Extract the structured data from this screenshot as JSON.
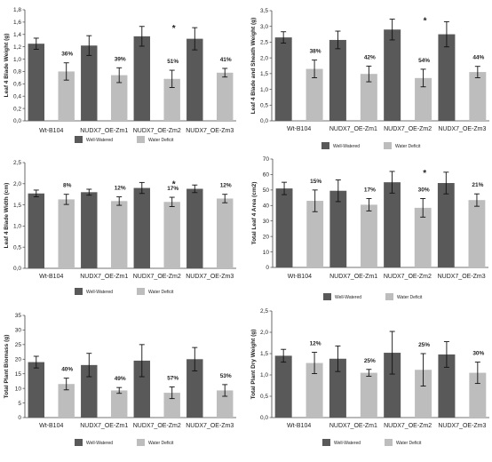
{
  "legend": {
    "well_watered_label": "Well-Watered",
    "water_deficit_label": "Water Deficit",
    "well_watered_color": "#595959",
    "water_deficit_color": "#bdbdbd"
  },
  "chart_data": [
    {
      "type": "bar",
      "ylabel": "Leaf 4 Blade Weight (g)",
      "ylim": [
        0,
        1.8
      ],
      "ytick_step": 0.2,
      "ytick_decimals": 1,
      "categories": [
        "Wt-B104",
        "NUDX7_OE-Zm1",
        "NUDX7_OE-Zm2",
        "NUDX7_OE-Zm3"
      ],
      "series": [
        {
          "name": "Well-Watered",
          "values": [
            1.25,
            1.22,
            1.37,
            1.33
          ],
          "errors": [
            0.09,
            0.16,
            0.16,
            0.18
          ]
        },
        {
          "name": "Water Deficit",
          "values": [
            0.8,
            0.74,
            0.68,
            0.78
          ],
          "errors": [
            0.14,
            0.12,
            0.14,
            0.07
          ]
        }
      ],
      "annotations": [
        "36%",
        "39%",
        "51%",
        "41%"
      ],
      "significance": [
        "",
        "",
        "*",
        ""
      ]
    },
    {
      "type": "bar",
      "ylabel": "Leaf 4 Blade and Sheath Weight (g)",
      "ylim": [
        0,
        3.5
      ],
      "ytick_step": 0.5,
      "ytick_decimals": 1,
      "categories": [
        "Wt-B104",
        "NUDX7_OE-Zm1",
        "NUDX7_OE-Zm2",
        "NUDX7_OE-Zm3"
      ],
      "series": [
        {
          "name": "Well-Watered",
          "values": [
            2.65,
            2.57,
            2.9,
            2.75
          ],
          "errors": [
            0.18,
            0.28,
            0.33,
            0.4
          ]
        },
        {
          "name": "Water Deficit",
          "values": [
            1.65,
            1.49,
            1.36,
            1.55
          ],
          "errors": [
            0.28,
            0.25,
            0.28,
            0.18
          ]
        }
      ],
      "annotations": [
        "38%",
        "42%",
        "54%",
        "44%"
      ],
      "significance": [
        "",
        "",
        "*",
        ""
      ]
    },
    {
      "type": "bar",
      "ylabel": "Leaf 4 Blade Width (cm)",
      "ylim": [
        0,
        2.5
      ],
      "ytick_step": 0.5,
      "ytick_decimals": 1,
      "categories": [
        "Wt-B104",
        "NUDX7_OE-Zm1",
        "NUDX7_OE-Zm2",
        "NUDX7_OE-Zm3"
      ],
      "series": [
        {
          "name": "Well-Watered",
          "values": [
            1.77,
            1.8,
            1.9,
            1.88
          ],
          "errors": [
            0.08,
            0.07,
            0.13,
            0.09
          ]
        },
        {
          "name": "Water Deficit",
          "values": [
            1.63,
            1.59,
            1.57,
            1.65
          ],
          "errors": [
            0.12,
            0.1,
            0.11,
            0.1
          ]
        }
      ],
      "annotations": [
        "8%",
        "12%",
        "17%",
        "12%"
      ],
      "significance": [
        "",
        "",
        "*",
        ""
      ]
    },
    {
      "type": "bar",
      "ylabel": "Total Leaf 4 Area (cm2)",
      "ylim": [
        0,
        70
      ],
      "ytick_step": 10,
      "ytick_decimals": 0,
      "categories": [
        "Wt-B104",
        "NUDX7_OE-Zm1",
        "NUDX7_OE-Zm2",
        "NUDX7_OE-Zm3"
      ],
      "series": [
        {
          "name": "Well-Watered",
          "values": [
            51,
            49.5,
            55,
            54.5
          ],
          "errors": [
            4,
            7,
            7,
            7
          ]
        },
        {
          "name": "Water Deficit",
          "values": [
            43,
            40.5,
            38.5,
            43.5
          ],
          "errors": [
            7,
            4,
            6,
            4
          ]
        }
      ],
      "annotations": [
        "15%",
        "17%",
        "30%",
        "21%"
      ],
      "significance": [
        "",
        "",
        "*",
        ""
      ]
    },
    {
      "type": "bar",
      "ylabel": "Total Plant Biomass (g)",
      "ylim": [
        0,
        35
      ],
      "ytick_step": 5,
      "ytick_decimals": 0,
      "categories": [
        "Wt-B104",
        "NUDX7_OE-Zm1",
        "NUDX7_OE-Zm2",
        "NUDX7_OE-Zm3"
      ],
      "series": [
        {
          "name": "Well-Watered",
          "values": [
            19,
            18,
            19.5,
            20
          ],
          "errors": [
            2,
            4,
            5.5,
            4
          ]
        },
        {
          "name": "Water Deficit",
          "values": [
            11.5,
            9.3,
            8.5,
            9.3
          ],
          "errors": [
            2,
            1,
            2,
            2
          ]
        }
      ],
      "annotations": [
        "40%",
        "49%",
        "57%",
        "53%"
      ],
      "significance": [
        "",
        "",
        "",
        ""
      ]
    },
    {
      "type": "bar",
      "ylabel": "Total Plant Dry Weight (g)",
      "ylim": [
        0,
        2.5
      ],
      "ytick_step": 0.5,
      "ytick_decimals": 1,
      "categories": [
        "Wt-B104",
        "NUDX7_OE-Zm1",
        "NUDX7_OE-Zm2",
        "NUDX7_OE-Zm3"
      ],
      "series": [
        {
          "name": "Well-Watered",
          "values": [
            1.45,
            1.38,
            1.52,
            1.48
          ],
          "errors": [
            0.15,
            0.3,
            0.5,
            0.3
          ]
        },
        {
          "name": "Water Deficit",
          "values": [
            1.28,
            1.05,
            1.12,
            1.05
          ],
          "errors": [
            0.25,
            0.08,
            0.38,
            0.25
          ]
        }
      ],
      "annotations": [
        "12%",
        "25%",
        "25%",
        "30%"
      ],
      "significance": [
        "",
        "",
        "",
        ""
      ]
    }
  ]
}
